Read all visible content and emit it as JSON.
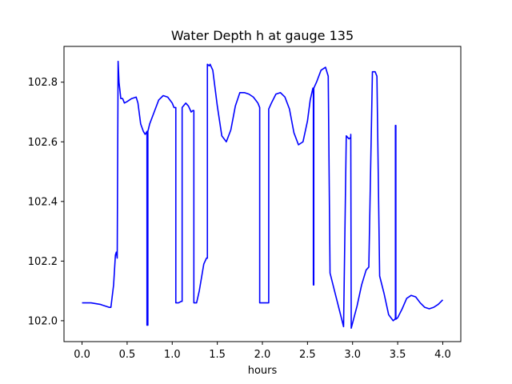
{
  "chart_data": {
    "type": "line",
    "title": "Water Depth h at gauge 135",
    "xlabel": "hours",
    "ylabel": "",
    "xlim": [
      -0.2,
      4.2
    ],
    "ylim": [
      101.93,
      102.92
    ],
    "xticks": [
      0.0,
      0.5,
      1.0,
      1.5,
      2.0,
      2.5,
      3.0,
      3.5,
      4.0
    ],
    "xtick_labels": [
      "0.0",
      "0.5",
      "1.0",
      "1.5",
      "2.0",
      "2.5",
      "3.0",
      "3.5",
      "4.0"
    ],
    "yticks": [
      102.0,
      102.2,
      102.4,
      102.6,
      102.8
    ],
    "ytick_labels": [
      "102.0",
      "102.2",
      "102.4",
      "102.6",
      "102.8"
    ],
    "grid": false,
    "colors": {
      "line": "#0000ff",
      "axes": "#000000",
      "background": "#ffffff"
    },
    "series": [
      {
        "name": "",
        "x": [
          0.0,
          0.1,
          0.2,
          0.3,
          0.32,
          0.35,
          0.37,
          0.38,
          0.39,
          0.4,
          0.41,
          0.43,
          0.45,
          0.47,
          0.5,
          0.55,
          0.6,
          0.62,
          0.65,
          0.68,
          0.7,
          0.72,
          0.72,
          0.73,
          0.73,
          0.75,
          0.8,
          0.85,
          0.9,
          0.95,
          1.0,
          1.02,
          1.04,
          1.04,
          1.07,
          1.1,
          1.11,
          1.11,
          1.15,
          1.18,
          1.21,
          1.23,
          1.24,
          1.24,
          1.27,
          1.3,
          1.35,
          1.38,
          1.39,
          1.39,
          1.41,
          1.42,
          1.45,
          1.5,
          1.55,
          1.6,
          1.65,
          1.7,
          1.75,
          1.8,
          1.85,
          1.9,
          1.95,
          1.97,
          1.97,
          2.0,
          2.05,
          2.07,
          2.07,
          2.1,
          2.15,
          2.2,
          2.25,
          2.3,
          2.35,
          2.4,
          2.45,
          2.5,
          2.53,
          2.56,
          2.565,
          2.565,
          2.57,
          2.57,
          2.6,
          2.65,
          2.7,
          2.73,
          2.73,
          2.75,
          2.8,
          2.85,
          2.9,
          2.9,
          2.93,
          2.96,
          2.98,
          2.98,
          2.985,
          3.05,
          3.1,
          3.15,
          3.18,
          3.18,
          3.22,
          3.25,
          3.27,
          3.27,
          3.3,
          3.35,
          3.4,
          3.45,
          3.47,
          3.475,
          3.475,
          3.48,
          3.48,
          3.5,
          3.55,
          3.6,
          3.65,
          3.7,
          3.75,
          3.8,
          3.85,
          3.9,
          3.95,
          4.0
        ],
        "y": [
          102.06,
          102.06,
          102.055,
          102.045,
          102.045,
          102.12,
          102.22,
          102.23,
          102.21,
          102.87,
          102.8,
          102.745,
          102.745,
          102.73,
          102.735,
          102.745,
          102.75,
          102.73,
          102.66,
          102.635,
          102.625,
          102.635,
          101.985,
          101.985,
          102.635,
          102.66,
          102.7,
          102.74,
          102.755,
          102.75,
          102.73,
          102.715,
          102.715,
          102.06,
          102.06,
          102.065,
          102.065,
          102.715,
          102.73,
          102.72,
          102.7,
          102.705,
          102.705,
          102.06,
          102.06,
          102.1,
          102.19,
          102.21,
          102.21,
          102.86,
          102.855,
          102.86,
          102.84,
          102.72,
          102.62,
          102.6,
          102.64,
          102.72,
          102.765,
          102.765,
          102.76,
          102.75,
          102.73,
          102.715,
          102.06,
          102.06,
          102.06,
          102.06,
          102.71,
          102.73,
          102.76,
          102.765,
          102.75,
          102.71,
          102.63,
          102.59,
          102.6,
          102.67,
          102.74,
          102.78,
          102.78,
          102.12,
          102.12,
          102.78,
          102.8,
          102.84,
          102.85,
          102.82,
          102.82,
          102.16,
          102.1,
          102.04,
          101.98,
          101.98,
          102.62,
          102.61,
          102.615,
          102.625,
          101.975,
          102.05,
          102.12,
          102.17,
          102.18,
          102.18,
          102.835,
          102.835,
          102.82,
          102.82,
          102.15,
          102.09,
          102.02,
          102.0,
          102.005,
          102.01,
          102.655,
          102.655,
          102.005,
          102.01,
          102.04,
          102.075,
          102.085,
          102.08,
          102.06,
          102.045,
          102.04,
          102.045,
          102.055,
          102.07
        ]
      }
    ]
  }
}
